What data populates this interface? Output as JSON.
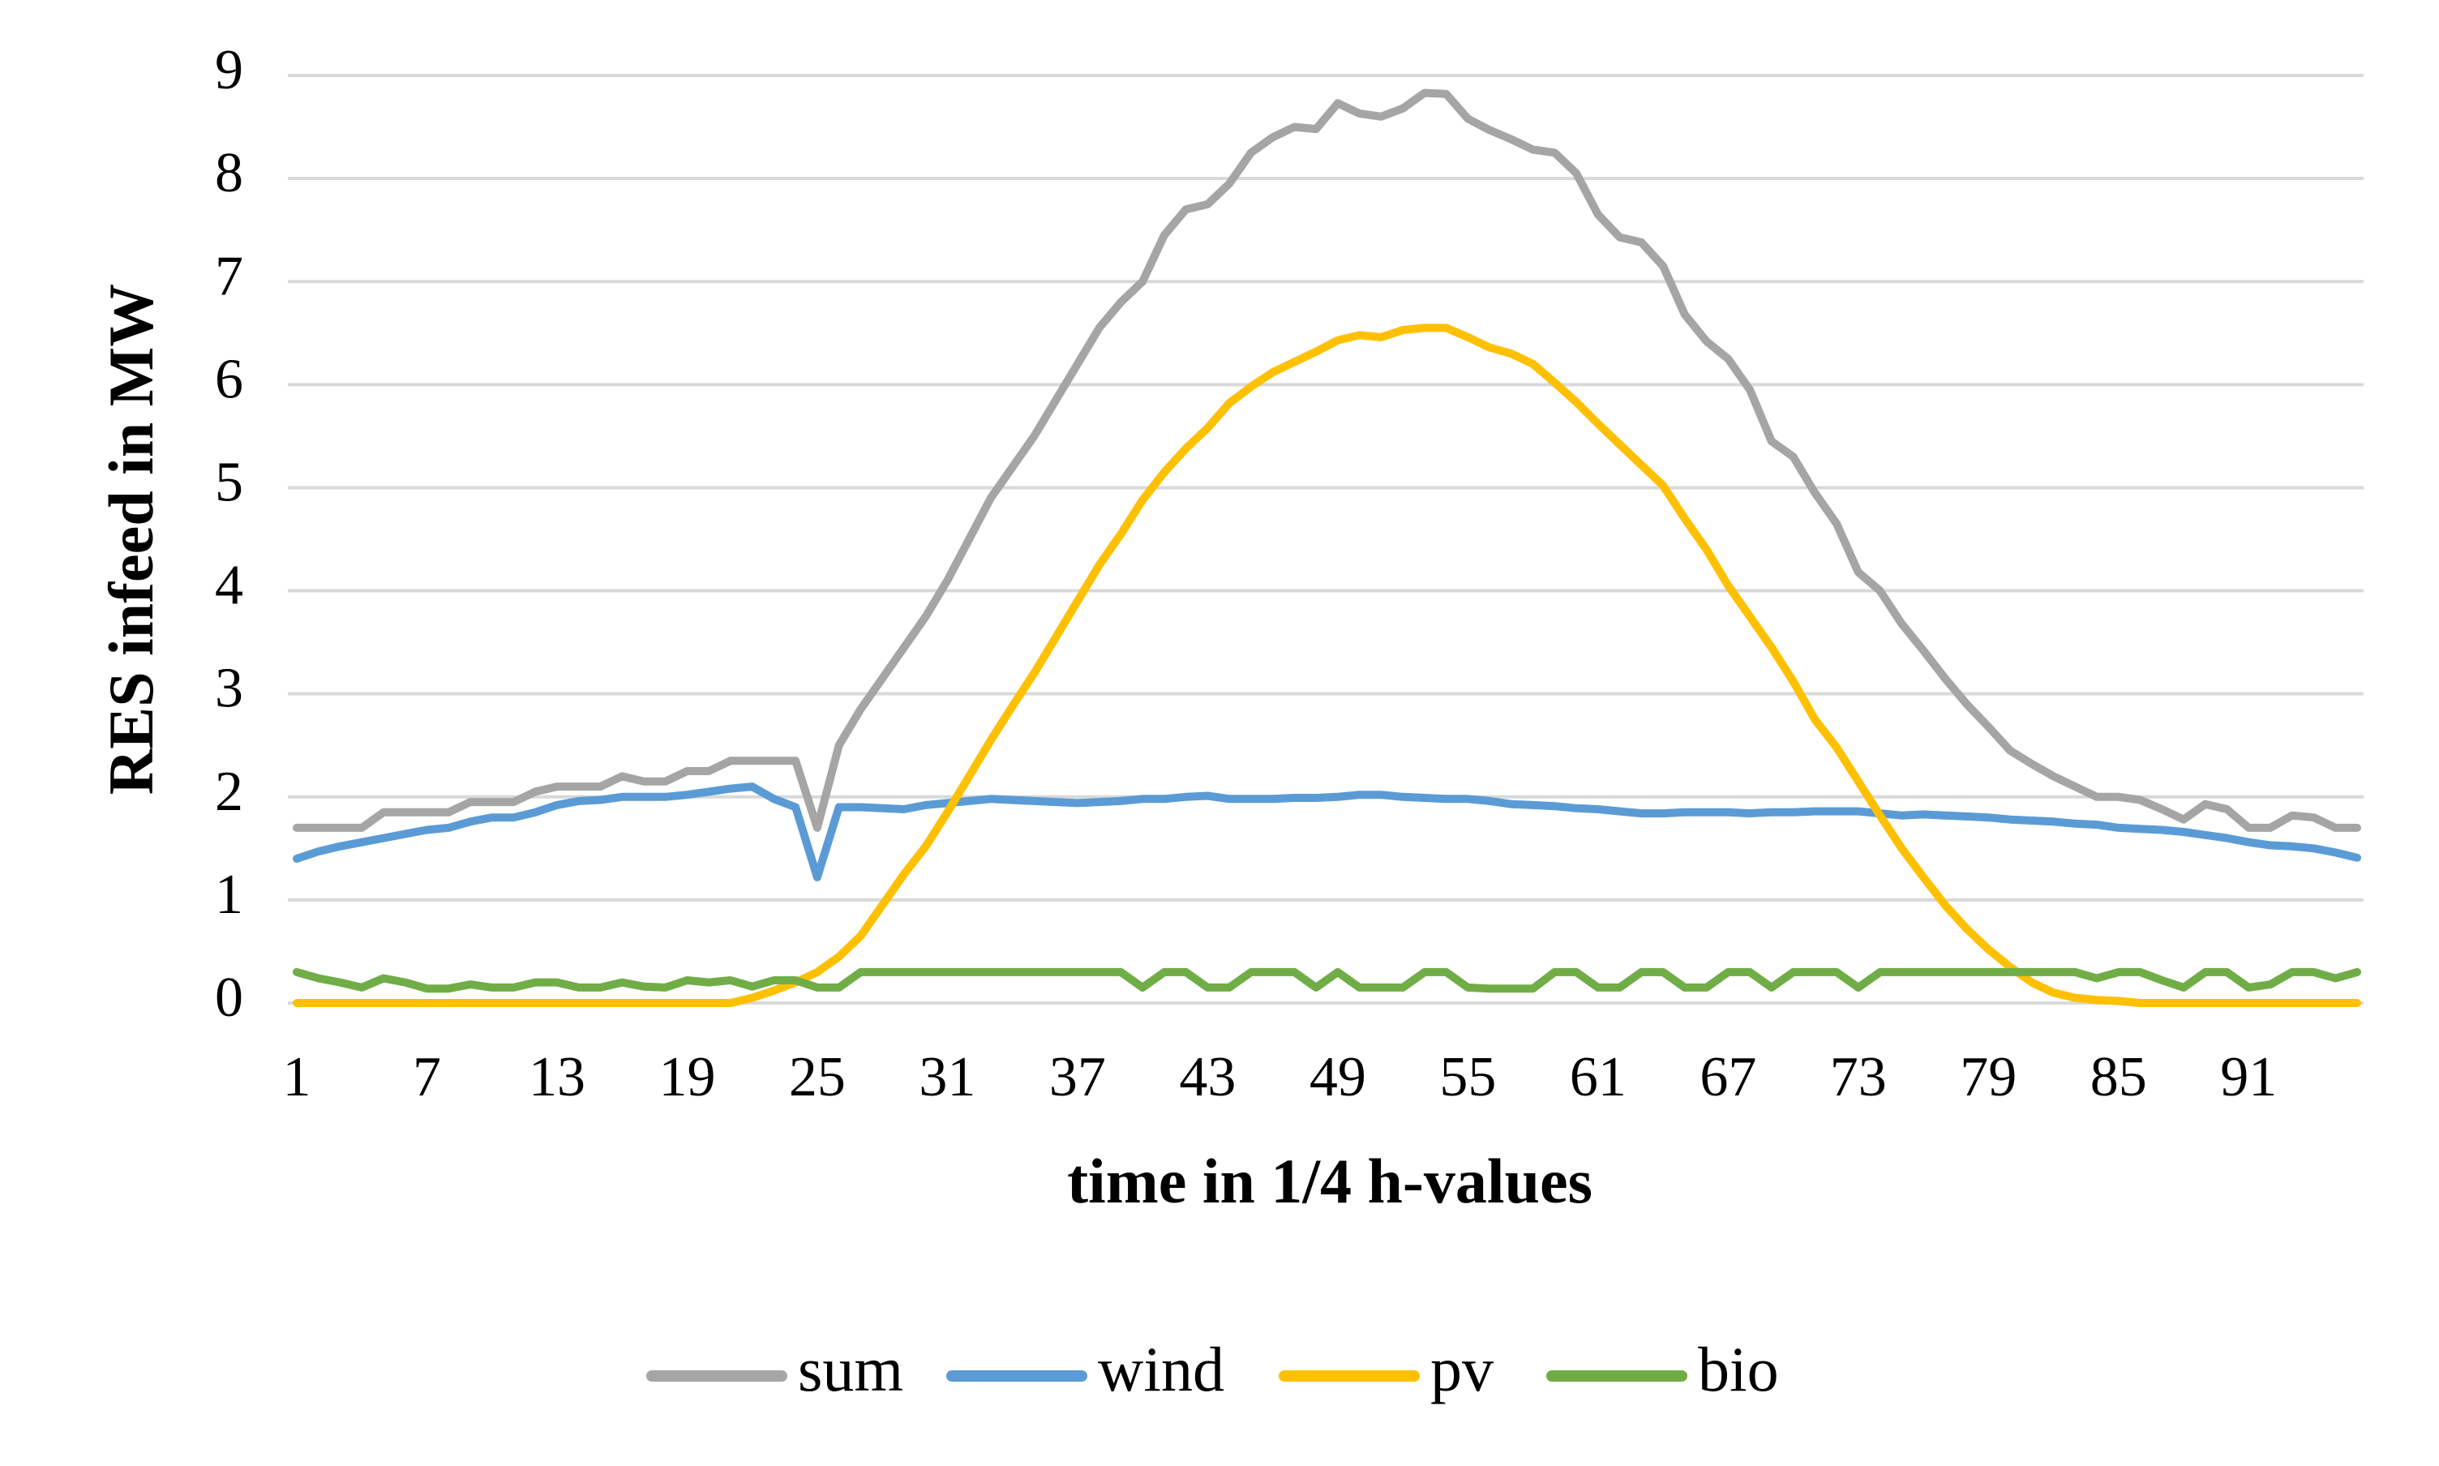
{
  "chart_data": {
    "type": "line",
    "xlabel": "time in 1/4 h-values",
    "ylabel": "RES infeed in MW",
    "categories": [
      1,
      null,
      null,
      null,
      null,
      null,
      7,
      null,
      null,
      null,
      null,
      null,
      13,
      null,
      null,
      null,
      null,
      null,
      19,
      null,
      null,
      null,
      null,
      null,
      25,
      null,
      null,
      null,
      null,
      null,
      31,
      null,
      null,
      null,
      null,
      null,
      37,
      null,
      null,
      null,
      null,
      null,
      43,
      null,
      null,
      null,
      null,
      null,
      49,
      null,
      null,
      null,
      null,
      null,
      55,
      null,
      null,
      null,
      null,
      null,
      61,
      null,
      null,
      null,
      null,
      null,
      67,
      null,
      null,
      null,
      null,
      null,
      73,
      null,
      null,
      null,
      null,
      null,
      79,
      null,
      null,
      null,
      null,
      null,
      85,
      null,
      null,
      null,
      null,
      null,
      91,
      null,
      null,
      null,
      null,
      null
    ],
    "series": [
      {
        "name": "sum",
        "color": "#a5a5a5",
        "values": [
          1.7,
          1.7,
          1.7,
          1.7,
          1.85,
          1.85,
          1.85,
          1.85,
          1.95,
          1.95,
          1.95,
          2.05,
          2.1,
          2.1,
          2.1,
          2.2,
          2.15,
          2.15,
          2.25,
          2.25,
          2.35,
          2.35,
          2.35,
          2.35,
          1.7,
          2.5,
          2.85,
          3.15,
          3.45,
          3.75,
          4.1,
          4.5,
          4.9,
          5.2,
          5.5,
          5.85,
          6.2,
          6.55,
          6.8,
          7.0,
          7.45,
          7.7,
          7.75,
          7.95,
          8.25,
          8.4,
          8.5,
          8.48,
          8.73,
          8.63,
          8.6,
          8.68,
          8.83,
          8.82,
          8.58,
          8.47,
          8.38,
          8.28,
          8.25,
          8.05,
          7.65,
          7.43,
          7.38,
          7.15,
          6.68,
          6.42,
          6.25,
          5.95,
          5.45,
          5.3,
          4.95,
          4.65,
          4.18,
          4.0,
          3.68,
          3.42,
          3.15,
          2.9,
          2.68,
          2.45,
          2.32,
          2.2,
          2.1,
          2.0,
          2.0,
          1.97,
          1.88,
          1.78,
          1.93,
          1.88,
          1.7,
          1.7,
          1.82,
          1.8,
          1.7,
          1.7
        ]
      },
      {
        "name": "wind",
        "color": "#5b9bd5",
        "values": [
          1.4,
          1.47,
          1.52,
          1.56,
          1.6,
          1.64,
          1.68,
          1.7,
          1.76,
          1.8,
          1.8,
          1.85,
          1.92,
          1.96,
          1.97,
          2.0,
          2.0,
          2.0,
          2.02,
          2.05,
          2.08,
          2.1,
          1.98,
          1.9,
          1.22,
          1.9,
          1.9,
          1.89,
          1.88,
          1.92,
          1.94,
          1.96,
          1.98,
          1.97,
          1.96,
          1.95,
          1.94,
          1.95,
          1.96,
          1.98,
          1.98,
          2.0,
          2.01,
          1.98,
          1.98,
          1.98,
          1.99,
          1.99,
          2.0,
          2.02,
          2.02,
          2.0,
          1.99,
          1.98,
          1.98,
          1.96,
          1.93,
          1.92,
          1.91,
          1.89,
          1.88,
          1.86,
          1.84,
          1.84,
          1.85,
          1.85,
          1.85,
          1.84,
          1.85,
          1.85,
          1.86,
          1.86,
          1.86,
          1.84,
          1.82,
          1.83,
          1.82,
          1.81,
          1.8,
          1.78,
          1.77,
          1.76,
          1.74,
          1.73,
          1.7,
          1.69,
          1.68,
          1.66,
          1.63,
          1.6,
          1.56,
          1.53,
          1.52,
          1.5,
          1.46,
          1.41
        ]
      },
      {
        "name": "pv",
        "color": "#ffc000",
        "values": [
          0,
          0,
          0,
          0,
          0,
          0,
          0,
          0,
          0,
          0,
          0,
          0,
          0,
          0,
          0,
          0,
          0,
          0,
          0,
          0,
          0,
          0.05,
          0.12,
          0.2,
          0.3,
          0.45,
          0.65,
          0.95,
          1.25,
          1.52,
          1.85,
          2.2,
          2.55,
          2.88,
          3.2,
          3.55,
          3.9,
          4.25,
          4.55,
          4.88,
          5.15,
          5.38,
          5.58,
          5.82,
          5.98,
          6.12,
          6.22,
          6.32,
          6.43,
          6.48,
          6.46,
          6.53,
          6.55,
          6.55,
          6.46,
          6.36,
          6.3,
          6.2,
          6.02,
          5.83,
          5.62,
          5.42,
          5.22,
          5.02,
          4.7,
          4.4,
          4.05,
          3.75,
          3.45,
          3.12,
          2.75,
          2.48,
          2.15,
          1.82,
          1.5,
          1.22,
          0.95,
          0.72,
          0.52,
          0.35,
          0.2,
          0.1,
          0.05,
          0.03,
          0.02,
          0,
          0,
          0,
          0,
          0,
          0,
          0,
          0,
          0,
          0,
          0
        ]
      },
      {
        "name": "bio",
        "color": "#70ad47",
        "values": [
          0.3,
          0.24,
          0.2,
          0.15,
          0.24,
          0.2,
          0.14,
          0.14,
          0.18,
          0.15,
          0.15,
          0.2,
          0.2,
          0.15,
          0.15,
          0.2,
          0.16,
          0.15,
          0.22,
          0.2,
          0.22,
          0.16,
          0.22,
          0.22,
          0.15,
          0.15,
          0.3,
          0.3,
          0.3,
          0.3,
          0.3,
          0.3,
          0.3,
          0.3,
          0.3,
          0.3,
          0.3,
          0.3,
          0.3,
          0.15,
          0.3,
          0.3,
          0.15,
          0.15,
          0.3,
          0.3,
          0.3,
          0.15,
          0.3,
          0.15,
          0.15,
          0.15,
          0.3,
          0.3,
          0.15,
          0.14,
          0.14,
          0.14,
          0.3,
          0.3,
          0.15,
          0.15,
          0.3,
          0.3,
          0.15,
          0.15,
          0.3,
          0.3,
          0.15,
          0.3,
          0.3,
          0.3,
          0.15,
          0.3,
          0.3,
          0.3,
          0.3,
          0.3,
          0.3,
          0.3,
          0.3,
          0.3,
          0.3,
          0.24,
          0.3,
          0.3,
          0.22,
          0.15,
          0.3,
          0.3,
          0.15,
          0.18,
          0.3,
          0.3,
          0.24,
          0.3
        ]
      }
    ],
    "ylim": [
      0,
      9
    ],
    "yticks": [
      0,
      1,
      2,
      3,
      4,
      5,
      6,
      7,
      8,
      9
    ],
    "grid": true,
    "legend": "bottom"
  }
}
